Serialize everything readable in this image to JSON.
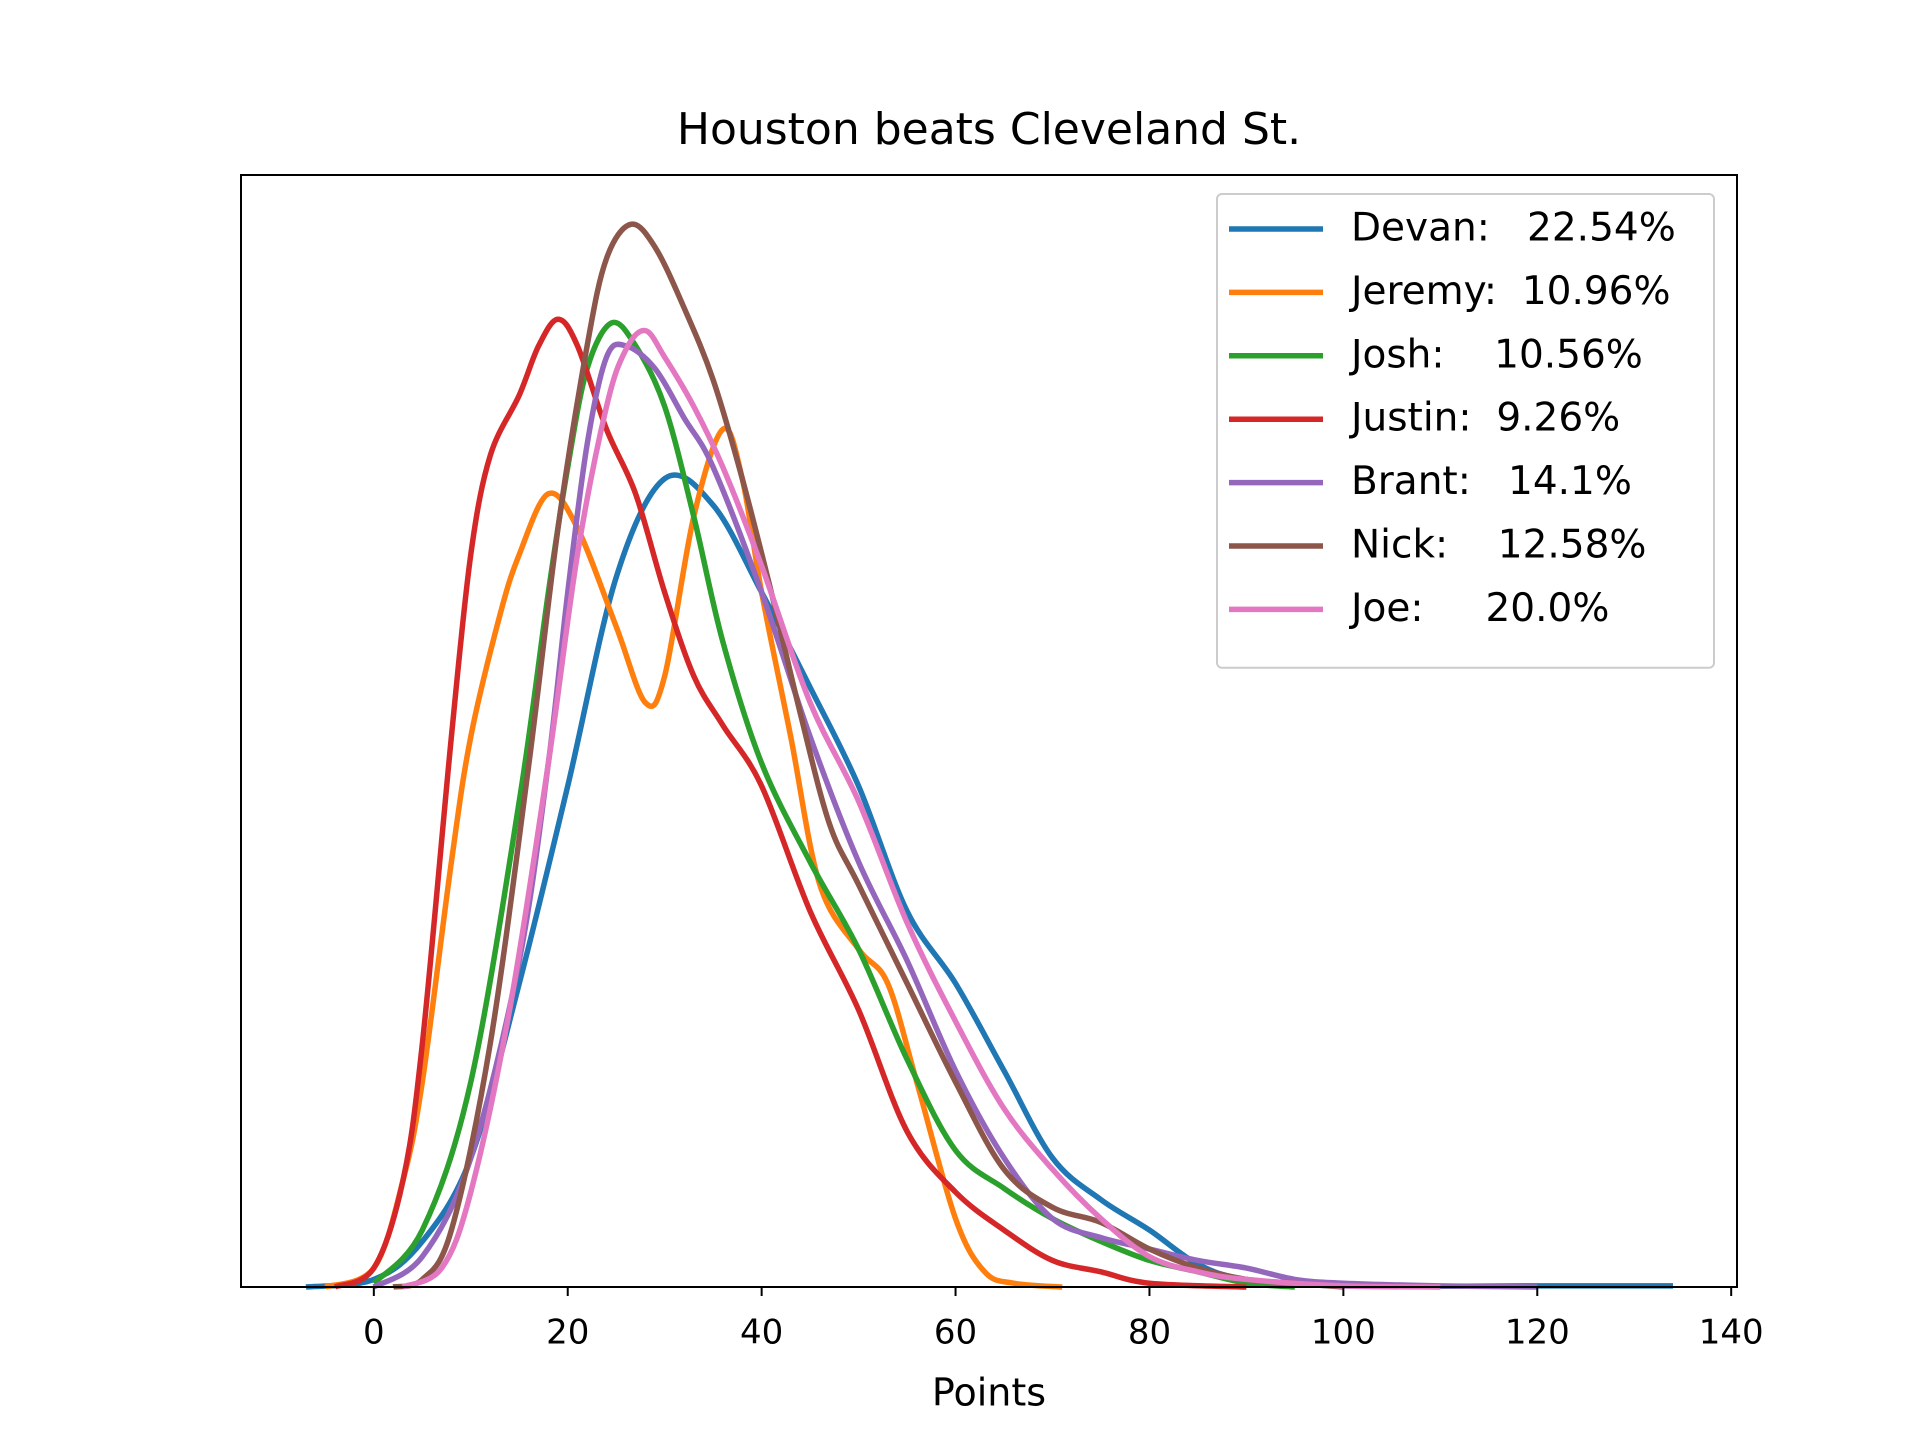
{
  "chart_data": {
    "type": "line",
    "title": "Houston beats Cleveland St.",
    "x_label": "Points",
    "xlim": [
      -13.7,
      140.6
    ],
    "xticks": [
      0,
      20,
      40,
      60,
      80,
      100,
      120,
      140
    ],
    "ylim": [
      0,
      0.0293
    ],
    "legend": "upper right",
    "series": [
      {
        "name": "Devan:   22.54%",
        "color": "#1f77b4",
        "x": [
          -7,
          0,
          5,
          10,
          15,
          20,
          25,
          30,
          35,
          40,
          45,
          50,
          55,
          60,
          65,
          70,
          75,
          80,
          85,
          90,
          100,
          120,
          134
        ],
        "values": [
          0,
          0.0002,
          0.0012,
          0.0034,
          0.008,
          0.0132,
          0.0187,
          0.0213,
          0.0206,
          0.0183,
          0.0158,
          0.0132,
          0.0099,
          0.008,
          0.0057,
          0.0034,
          0.0023,
          0.0015,
          0.0006,
          0.0002,
          3e-05,
          3e-05,
          3e-05
        ]
      },
      {
        "name": "Jeremy:  10.96%",
        "color": "#ff7f0e",
        "x": [
          -5,
          0,
          3,
          5,
          8,
          10,
          13,
          15,
          18,
          21,
          25,
          28,
          30,
          33,
          36,
          38,
          40,
          43,
          46,
          50,
          53,
          56,
          60,
          63,
          66,
          71
        ],
        "values": [
          0,
          0.0005,
          0.0028,
          0.0054,
          0.0112,
          0.0145,
          0.0177,
          0.0193,
          0.0209,
          0.02,
          0.0174,
          0.0154,
          0.0161,
          0.0203,
          0.0226,
          0.0213,
          0.0183,
          0.0145,
          0.0106,
          0.0089,
          0.008,
          0.0054,
          0.0018,
          0.0004,
          0.0001,
          0
        ]
      },
      {
        "name": "Josh:    10.56%",
        "color": "#2ca02c",
        "x": [
          0,
          5,
          10,
          15,
          18,
          20,
          22,
          24.5,
          27,
          30,
          33,
          36,
          40,
          45,
          50,
          55,
          60,
          65,
          70,
          75,
          80,
          85,
          90,
          95
        ],
        "values": [
          0.0001,
          0.0015,
          0.0054,
          0.0128,
          0.0183,
          0.0216,
          0.0242,
          0.0254,
          0.0248,
          0.0232,
          0.0203,
          0.017,
          0.0138,
          0.0112,
          0.0089,
          0.006,
          0.0036,
          0.0026,
          0.0018,
          0.0012,
          0.0007,
          0.0004,
          0.0001,
          0
        ]
      },
      {
        "name": "Justin:  9.26%",
        "color": "#d62728",
        "x": [
          -4,
          0,
          3,
          5,
          8,
          10,
          12,
          15,
          17,
          19,
          21,
          24,
          27,
          30,
          33,
          36,
          40,
          45,
          50,
          55,
          60,
          65,
          70,
          75,
          80,
          90
        ],
        "values": [
          0,
          0.0005,
          0.0028,
          0.0064,
          0.0145,
          0.0193,
          0.0219,
          0.0235,
          0.0248,
          0.0255,
          0.0248,
          0.0226,
          0.0209,
          0.0183,
          0.0161,
          0.0148,
          0.0132,
          0.0099,
          0.0073,
          0.0041,
          0.0025,
          0.0015,
          0.0007,
          0.0004,
          0.0001,
          0
        ]
      },
      {
        "name": "Brant:   14.1%",
        "color": "#9467bd",
        "x": [
          0,
          5,
          10,
          15,
          18,
          20,
          22,
          24,
          26,
          29,
          32,
          35,
          40,
          45,
          50,
          55,
          60,
          65,
          70,
          75,
          80,
          85,
          90,
          95,
          100,
          110,
          120
        ],
        "values": [
          0,
          0.0008,
          0.0034,
          0.0086,
          0.0138,
          0.0183,
          0.0222,
          0.0245,
          0.0248,
          0.0242,
          0.0229,
          0.0216,
          0.0183,
          0.0145,
          0.0112,
          0.0086,
          0.0057,
          0.0034,
          0.0018,
          0.0013,
          0.001,
          0.0007,
          0.0005,
          0.0002,
          0.0001,
          3e-05,
          0
        ]
      },
      {
        "name": "Nick:    12.58%",
        "color": "#8c564b",
        "x": [
          2,
          5,
          8,
          12,
          16,
          19,
          22,
          24,
          26.5,
          29,
          32,
          35,
          38,
          41,
          44,
          47,
          50,
          55,
          60,
          65,
          70,
          75,
          80,
          85,
          90,
          95,
          100
        ],
        "values": [
          0,
          0.0002,
          0.0015,
          0.0064,
          0.0138,
          0.02,
          0.0248,
          0.0271,
          0.028,
          0.0274,
          0.0258,
          0.0239,
          0.0213,
          0.0183,
          0.0151,
          0.0122,
          0.0106,
          0.008,
          0.0054,
          0.0031,
          0.0021,
          0.0017,
          0.001,
          0.0005,
          0.0002,
          0.0001,
          0
        ]
      },
      {
        "name": "Joe:     20.0%",
        "color": "#e377c2",
        "x": [
          3,
          7,
          10,
          14,
          18,
          21,
          24,
          26,
          28,
          30,
          33,
          36,
          40,
          45,
          50,
          55,
          60,
          65,
          70,
          75,
          80,
          85,
          90,
          100,
          110
        ],
        "values": [
          0,
          0.0005,
          0.0025,
          0.0073,
          0.0138,
          0.0193,
          0.0232,
          0.0247,
          0.0252,
          0.0245,
          0.0232,
          0.0216,
          0.019,
          0.0154,
          0.0128,
          0.0096,
          0.007,
          0.0047,
          0.0031,
          0.0018,
          0.0008,
          0.0004,
          0.0002,
          3e-05,
          0
        ]
      }
    ]
  }
}
